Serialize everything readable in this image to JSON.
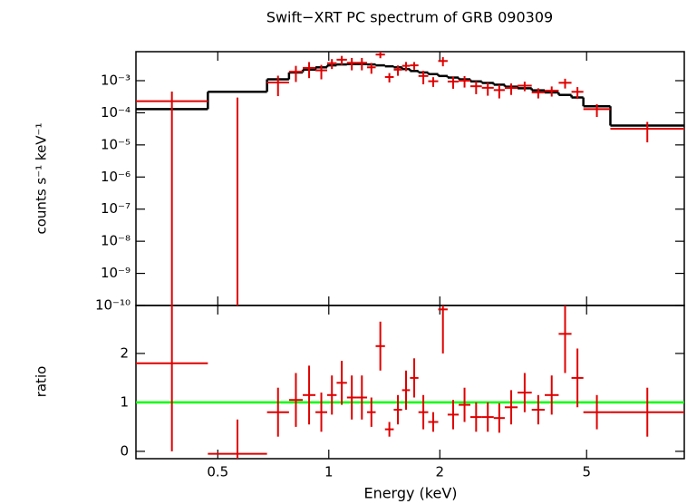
{
  "chart_data": [
    {
      "type": "errorbar",
      "title": "Swift−XRT PC spectrum of GRB 090309",
      "ylabel": "counts s⁻¹ keV⁻¹",
      "log_y": true,
      "bins": [
        0.3,
        0.47,
        0.68,
        0.78,
        0.85,
        0.92,
        0.99,
        1.05,
        1.12,
        1.19,
        1.27,
        1.34,
        1.42,
        1.5,
        1.58,
        1.66,
        1.75,
        1.86,
        1.98,
        2.1,
        2.25,
        2.42,
        2.6,
        2.8,
        3.0,
        3.25,
        3.55,
        3.85,
        4.2,
        4.55,
        4.9,
        5.8,
        9.2
      ],
      "model": [
        0.00013,
        0.00045,
        0.0011,
        0.0018,
        0.0022,
        0.0026,
        0.003,
        0.0032,
        0.0033,
        0.0033,
        0.0032,
        0.003,
        0.0028,
        0.0026,
        0.0023,
        0.002,
        0.0018,
        0.0016,
        0.0014,
        0.00125,
        0.0011,
        0.00095,
        0.00085,
        0.00075,
        0.00065,
        0.00058,
        0.0005,
        0.00043,
        0.00036,
        0.0003,
        0.00016,
        4e-05
      ],
      "model_color": "#000000",
      "flux": [
        0.00023,
        -2.2e-05,
        0.00088,
        0.0019,
        0.0025,
        0.0021,
        0.0035,
        0.0045,
        0.0036,
        0.0036,
        0.0026,
        0.0065,
        0.0013,
        0.0022,
        0.0029,
        0.003,
        0.0014,
        0.00096,
        0.0041,
        0.00094,
        0.001,
        0.00067,
        0.0006,
        0.00051,
        0.00059,
        0.0007,
        0.00043,
        0.00049,
        0.00086,
        0.00045,
        0.00013,
        3.2e-05
      ],
      "flux_err": [
        0.00023,
        0.00032,
        0.00055,
        0.00099,
        0.0013,
        0.001,
        0.0012,
        0.0014,
        0.0015,
        0.0015,
        0.00096,
        0.0015,
        0.00042,
        0.00078,
        0.00092,
        0.0008,
        0.00063,
        0.00032,
        0.0013,
        0.00038,
        0.00039,
        0.00029,
        0.00026,
        0.00023,
        0.00023,
        0.00023,
        0.00015,
        0.00017,
        0.00029,
        0.00018,
        5.6e-05,
        2e-05
      ],
      "color": "#e00000",
      "ylim": [
        1e-10,
        0.008
      ],
      "yticks": [
        {
          "value": 0.001,
          "label": "10⁻³"
        },
        {
          "value": 0.0001,
          "label": "10⁻⁴"
        },
        {
          "value": 1e-05,
          "label": "10⁻⁵"
        },
        {
          "value": 1e-06,
          "label": "10⁻⁶"
        },
        {
          "value": 1e-07,
          "label": "10⁻⁷"
        },
        {
          "value": 1e-08,
          "label": "10⁻⁸"
        },
        {
          "value": 1e-09,
          "label": "10⁻⁹"
        },
        {
          "value": 1e-10,
          "label": "10⁻¹⁰"
        }
      ]
    },
    {
      "type": "errorbar",
      "xlabel": "Energy (keV)",
      "ylabel": "ratio",
      "log_x": true,
      "ratio": [
        1.8,
        -0.05,
        0.8,
        1.05,
        1.15,
        0.8,
        1.15,
        1.4,
        1.1,
        1.1,
        0.8,
        2.15,
        0.45,
        0.85,
        1.25,
        1.5,
        0.8,
        0.6,
        2.9,
        0.75,
        0.95,
        0.7,
        0.7,
        0.68,
        0.9,
        1.2,
        0.85,
        1.15,
        2.4,
        1.5,
        0.8,
        0.8
      ],
      "ratio_err": [
        1.8,
        0.7,
        0.5,
        0.55,
        0.6,
        0.4,
        0.4,
        0.45,
        0.45,
        0.45,
        0.3,
        0.5,
        0.15,
        0.3,
        0.4,
        0.4,
        0.35,
        0.2,
        0.9,
        0.3,
        0.35,
        0.3,
        0.3,
        0.3,
        0.35,
        0.4,
        0.3,
        0.4,
        0.8,
        0.6,
        0.35,
        0.5
      ],
      "color": "#e00000",
      "reference": 1,
      "reference_color": "#00ff00",
      "xlim": [
        0.3,
        9.2
      ],
      "xticks": [
        0.5,
        1,
        2,
        5
      ],
      "ylim": [
        -0.15,
        2.98
      ],
      "yticks": [
        0,
        1,
        2
      ]
    }
  ]
}
